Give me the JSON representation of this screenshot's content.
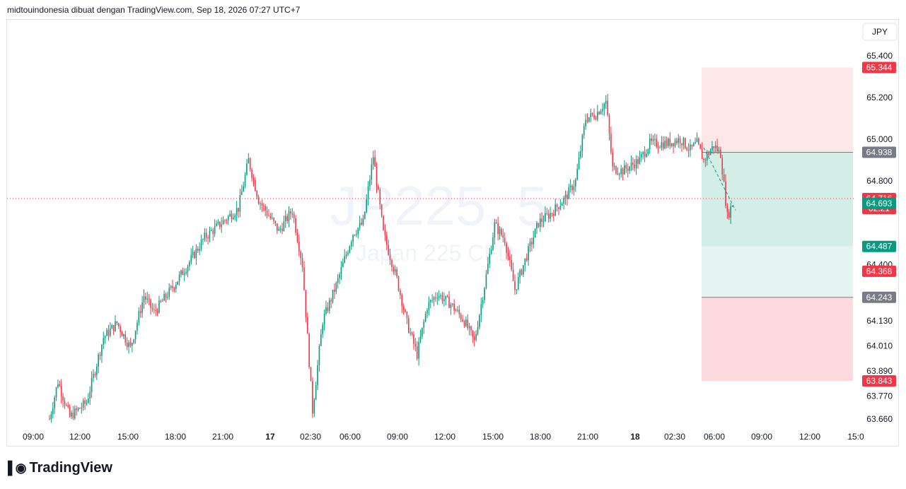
{
  "header": {
    "title": "midtouindonesia dibuat dengan TradingView.com, Sep 18, 2026 07:27 UTC+7"
  },
  "logo": {
    "text": "TradingView"
  },
  "currency": "JPY",
  "watermark": {
    "symbol": "JP225, 5",
    "name": "Japan 225 CFD"
  },
  "colors": {
    "up": "#089981",
    "down": "#f23645",
    "profit_zone": "#d4ece6",
    "stop_zone": "#fde4e5",
    "gray_label": "#787b86"
  },
  "chart_data": {
    "type": "candlestick",
    "ylim": [
      63.64,
      65.43
    ],
    "y_ticks": [
      "65.400",
      "65.200",
      "65.000",
      "64.800",
      "64.400",
      "64.130",
      "64.010",
      "63.890",
      "63.770",
      "63.660"
    ],
    "x_ticks": [
      {
        "label": "09:00",
        "bold": false
      },
      {
        "label": "12:00",
        "bold": false
      },
      {
        "label": "15:00",
        "bold": false
      },
      {
        "label": "18:00",
        "bold": false
      },
      {
        "label": "21:00",
        "bold": false
      },
      {
        "label": "17",
        "bold": true
      },
      {
        "label": "02:30",
        "bold": false
      },
      {
        "label": "06:00",
        "bold": false
      },
      {
        "label": "09:00",
        "bold": false
      },
      {
        "label": "12:00",
        "bold": false
      },
      {
        "label": "15:00",
        "bold": false
      },
      {
        "label": "18:00",
        "bold": false
      },
      {
        "label": "21:00",
        "bold": false
      },
      {
        "label": "18",
        "bold": true
      },
      {
        "label": "02:30",
        "bold": false
      },
      {
        "label": "06:00",
        "bold": false
      },
      {
        "label": "09:00",
        "bold": false
      },
      {
        "label": "12:00",
        "bold": false
      },
      {
        "label": "15:0",
        "bold": false
      }
    ],
    "price_path": [
      [
        0,
        63.66
      ],
      [
        5,
        63.84
      ],
      [
        12,
        63.67
      ],
      [
        22,
        63.74
      ],
      [
        32,
        64.05
      ],
      [
        40,
        64.12
      ],
      [
        48,
        64.0
      ],
      [
        56,
        64.25
      ],
      [
        62,
        64.17
      ],
      [
        72,
        64.28
      ],
      [
        82,
        64.4
      ],
      [
        92,
        64.53
      ],
      [
        102,
        64.6
      ],
      [
        112,
        64.67
      ],
      [
        118,
        64.9
      ],
      [
        124,
        64.71
      ],
      [
        136,
        64.56
      ],
      [
        144,
        64.66
      ],
      [
        150,
        64.4
      ],
      [
        156,
        63.7
      ],
      [
        162,
        64.13
      ],
      [
        170,
        64.3
      ],
      [
        180,
        64.55
      ],
      [
        186,
        64.6
      ],
      [
        192,
        64.92
      ],
      [
        198,
        64.55
      ],
      [
        206,
        64.33
      ],
      [
        212,
        64.12
      ],
      [
        218,
        63.97
      ],
      [
        224,
        64.2
      ],
      [
        230,
        64.26
      ],
      [
        238,
        64.21
      ],
      [
        246,
        64.13
      ],
      [
        252,
        64.03
      ],
      [
        258,
        64.3
      ],
      [
        264,
        64.59
      ],
      [
        270,
        64.52
      ],
      [
        276,
        64.28
      ],
      [
        282,
        64.42
      ],
      [
        290,
        64.6
      ],
      [
        298,
        64.65
      ],
      [
        306,
        64.72
      ],
      [
        312,
        64.8
      ],
      [
        318,
        65.1
      ],
      [
        324,
        65.12
      ],
      [
        330,
        65.18
      ],
      [
        334,
        64.86
      ],
      [
        340,
        64.85
      ],
      [
        350,
        64.9
      ],
      [
        356,
        64.98
      ],
      [
        366,
        64.98
      ],
      [
        374,
        65.0
      ],
      [
        380,
        64.95
      ],
      [
        384,
        64.98
      ],
      [
        388,
        64.9
      ],
      [
        394,
        64.97
      ],
      [
        398,
        64.93
      ],
      [
        402,
        64.63
      ],
      [
        406,
        64.71
      ]
    ],
    "current_price": {
      "value": "64.716",
      "countdown": "02:21"
    },
    "position": {
      "type": "short",
      "entry": "64.938",
      "stop": "65.344",
      "targets": [
        "64.693",
        "64.487",
        "64.243"
      ],
      "target_stop_label": "64.368",
      "final_stop_label": "63.843"
    }
  }
}
